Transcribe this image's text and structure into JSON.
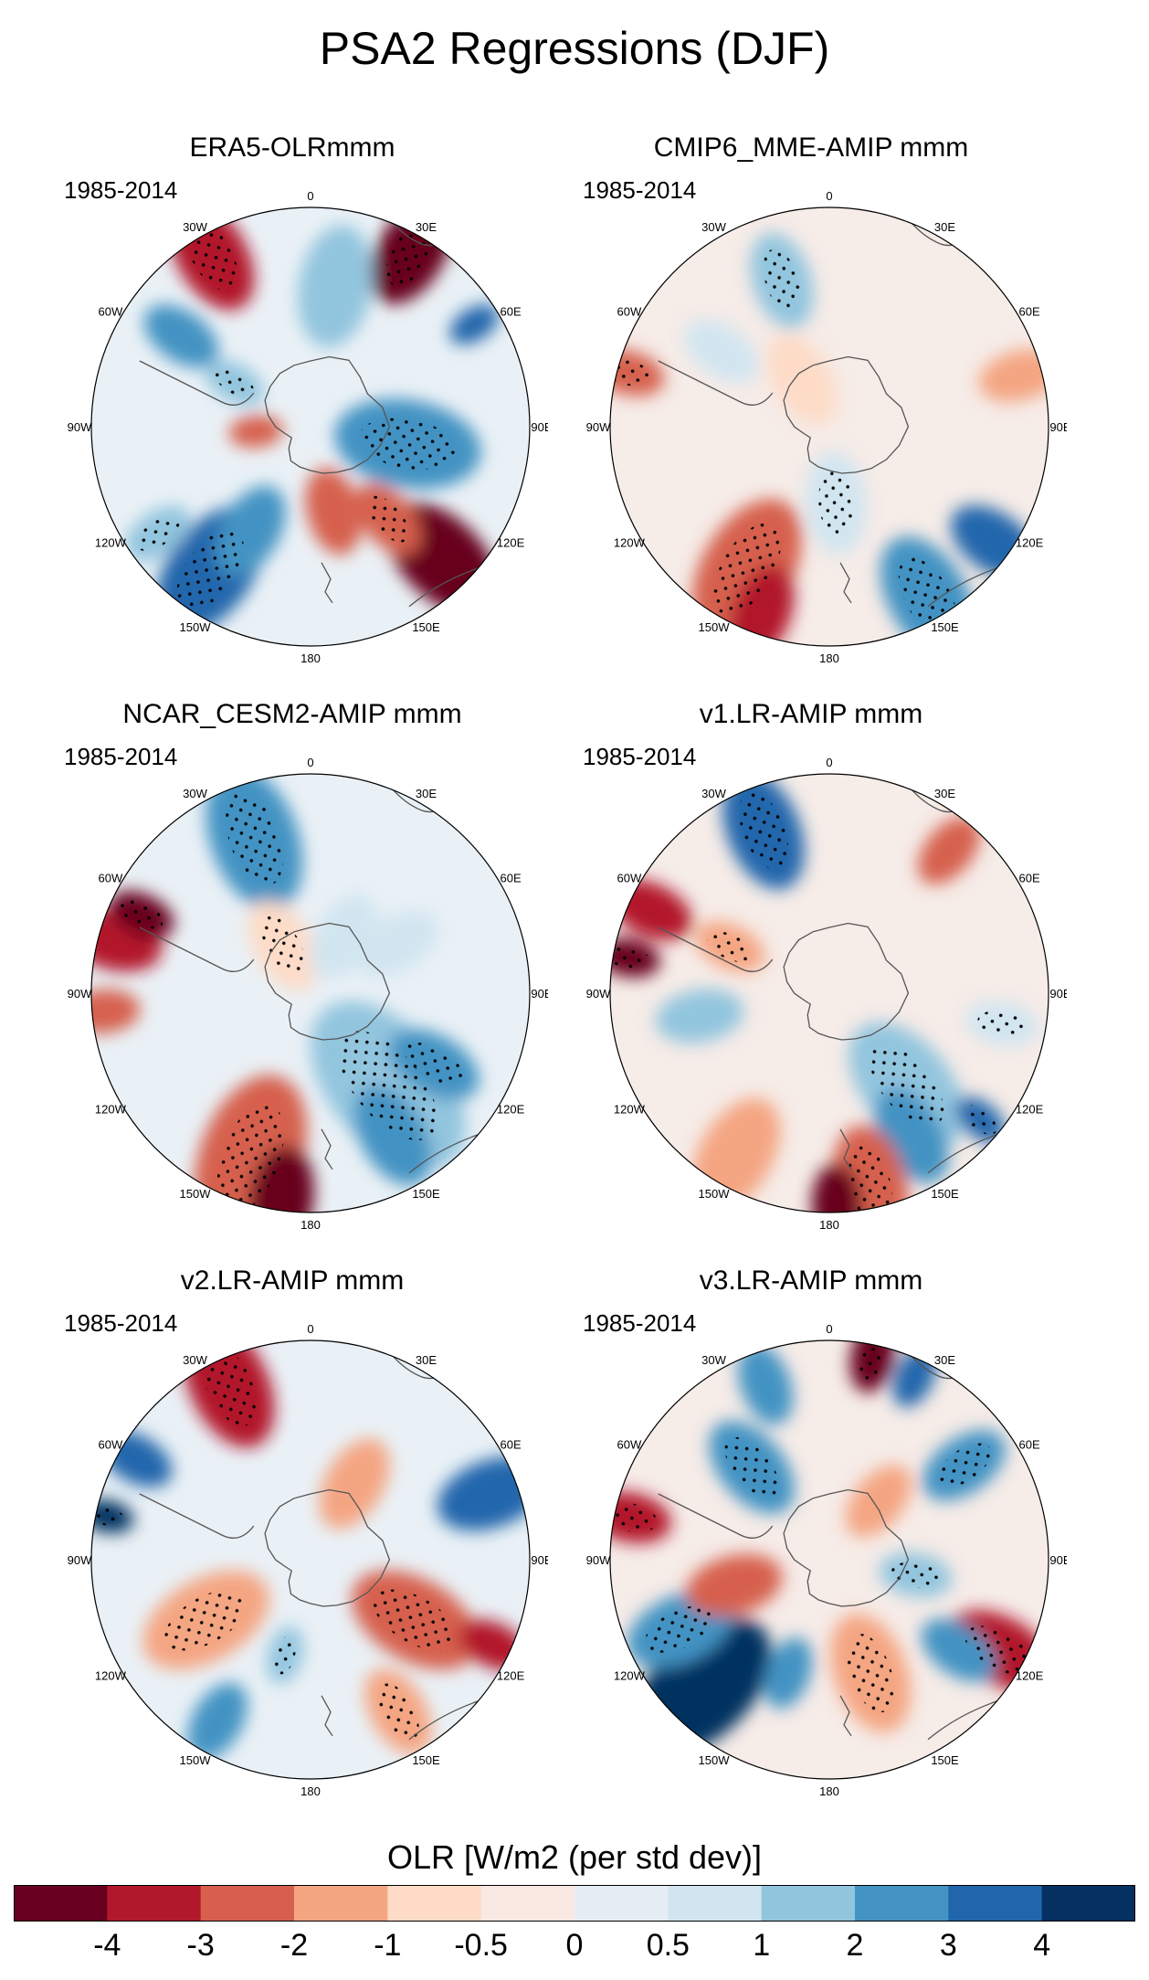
{
  "chart_data": {
    "type": "heatmap",
    "title": "PSA2 Regressions (DJF)",
    "projection": "south polar stereographic",
    "longitude_labels": [
      "0",
      "30E",
      "60E",
      "90E",
      "120E",
      "150E",
      "180",
      "150W",
      "120W",
      "90W",
      "60W",
      "30W"
    ],
    "panels": [
      {
        "title": "ERA5-OLRmmm",
        "period": "1985-2014"
      },
      {
        "title": "CMIP6_MME-AMIP  mmm",
        "period": "1985-2014"
      },
      {
        "title": "NCAR_CESM2-AMIP  mmm",
        "period": "1985-2014"
      },
      {
        "title": "v1.LR-AMIP  mmm",
        "period": "1985-2014"
      },
      {
        "title": "v2.LR-AMIP  mmm",
        "period": "1985-2014"
      },
      {
        "title": "v3.LR-AMIP  mmm",
        "period": "1985-2014"
      }
    ],
    "colorbar": {
      "label": "OLR [W/m2 (per std dev)]",
      "ticks": [
        "-4",
        "-3",
        "-2",
        "-1",
        "-0.5",
        "0",
        "0.5",
        "1",
        "2",
        "3",
        "4"
      ],
      "colors": [
        "#67001f",
        "#b2182b",
        "#d6604d",
        "#f4a582",
        "#fddbc7",
        "#f9e9e2",
        "#e4eef4",
        "#d1e5f0",
        "#92c5de",
        "#4393c3",
        "#2166ac",
        "#053061"
      ]
    }
  }
}
